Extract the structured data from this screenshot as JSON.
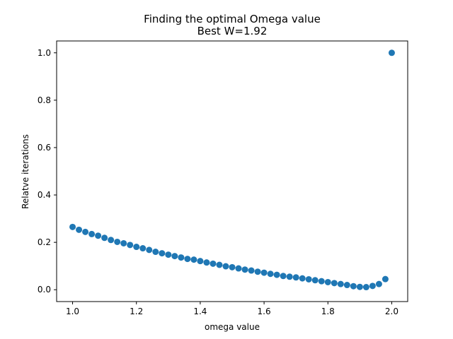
{
  "chart_data": {
    "type": "scatter",
    "title": "Finding the optimal Omega value",
    "subtitle": "Best W=1.92",
    "xlabel": "omega value",
    "ylabel": "Relatve iterations",
    "xlim": [
      0.95,
      2.05
    ],
    "ylim": [
      -0.05,
      1.05
    ],
    "xticks": [
      1.0,
      1.2,
      1.4,
      1.6,
      1.8,
      2.0
    ],
    "xtick_labels": [
      "1.0",
      "1.2",
      "1.4",
      "1.6",
      "1.8",
      "2.0"
    ],
    "yticks": [
      0.0,
      0.2,
      0.4,
      0.6,
      0.8,
      1.0
    ],
    "ytick_labels": [
      "0.0",
      "0.2",
      "0.4",
      "0.6",
      "0.8",
      "1.0"
    ],
    "grid": false,
    "marker_color": "#1f77b4",
    "series": [
      {
        "x": [
          1.0,
          1.02,
          1.04,
          1.06,
          1.08,
          1.1,
          1.12,
          1.14,
          1.16,
          1.18,
          1.2,
          1.22,
          1.24,
          1.26,
          1.28,
          1.3,
          1.32,
          1.34,
          1.36,
          1.38,
          1.4,
          1.42,
          1.44,
          1.46,
          1.48,
          1.5,
          1.52,
          1.54,
          1.56,
          1.58,
          1.6,
          1.62,
          1.64,
          1.66,
          1.68,
          1.7,
          1.72,
          1.74,
          1.76,
          1.78,
          1.8,
          1.82,
          1.84,
          1.86,
          1.88,
          1.9,
          1.92,
          1.94,
          1.96,
          1.98,
          2.0
        ],
        "y": [
          0.265,
          0.253,
          0.244,
          0.235,
          0.228,
          0.219,
          0.21,
          0.202,
          0.196,
          0.189,
          0.181,
          0.175,
          0.168,
          0.16,
          0.154,
          0.148,
          0.142,
          0.136,
          0.13,
          0.127,
          0.121,
          0.115,
          0.11,
          0.105,
          0.099,
          0.095,
          0.09,
          0.085,
          0.081,
          0.076,
          0.072,
          0.067,
          0.063,
          0.058,
          0.055,
          0.052,
          0.048,
          0.044,
          0.04,
          0.036,
          0.032,
          0.028,
          0.024,
          0.02,
          0.015,
          0.012,
          0.011,
          0.016,
          0.024,
          0.045,
          1.0
        ]
      }
    ]
  }
}
